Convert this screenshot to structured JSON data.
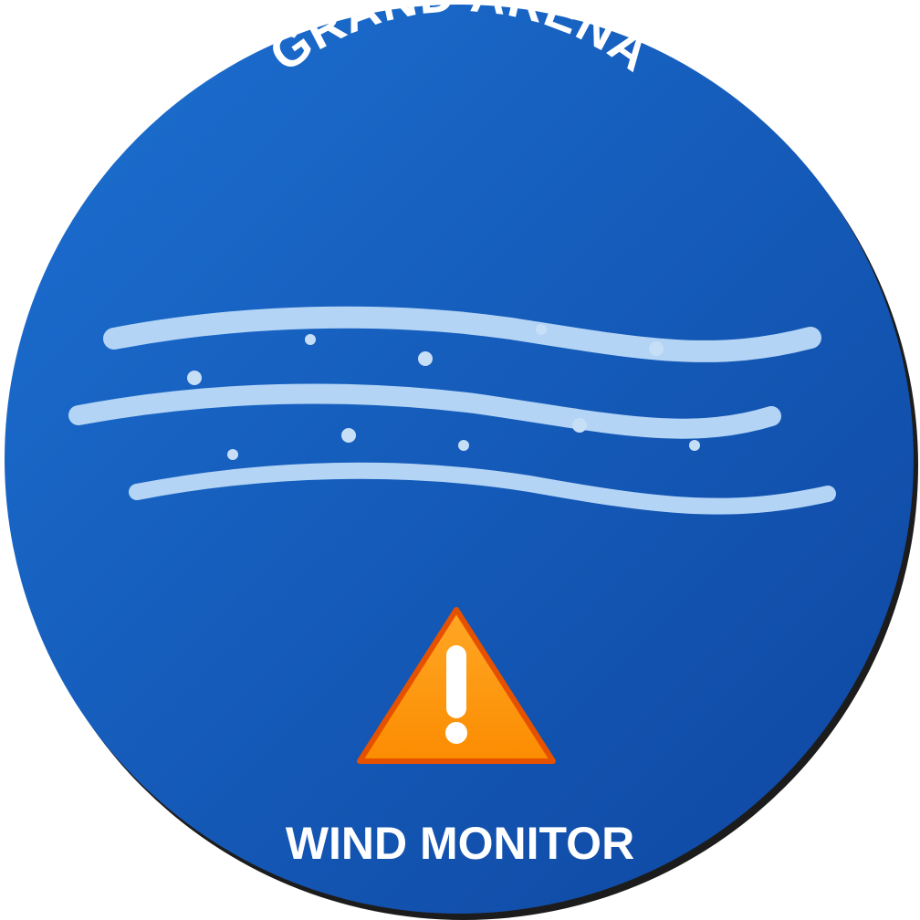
{
  "badge": {
    "top_title": "GRAND ARENA",
    "bottom_title": "WIND MONITOR",
    "wind_icon": "wind-lines-icon",
    "warning_icon": "warning-triangle-icon"
  },
  "colors": {
    "disc_light": "#1a6bcc",
    "disc_dark": "#0f4aa6",
    "rim_shadow": "#222222",
    "wind_line": "#b3d4f5",
    "warning_fill": "#fb8c00",
    "warning_stroke": "#e65100",
    "text": "#ffffff"
  }
}
